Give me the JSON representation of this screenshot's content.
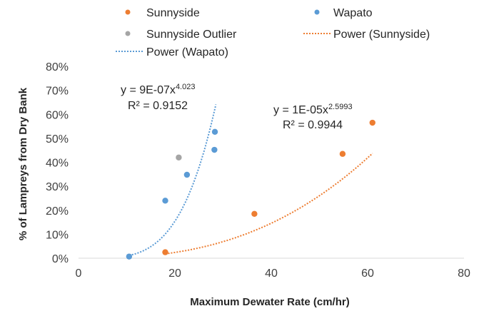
{
  "chart_data": {
    "type": "scatter",
    "xlabel": "Maximum Dewater Rate (cm/hr)",
    "ylabel": "% of Lampreys from Dry Bank",
    "xlim": [
      0,
      80
    ],
    "ylim": [
      0,
      0.8
    ],
    "x_ticks": [
      0,
      20,
      40,
      60,
      80
    ],
    "y_ticks": [
      0,
      0.1,
      0.2,
      0.3,
      0.4,
      0.5,
      0.6,
      0.7,
      0.8
    ],
    "x_tick_labels": [
      "0",
      "20",
      "40",
      "60",
      "80"
    ],
    "y_tick_labels": [
      "0%",
      "10%",
      "20%",
      "30%",
      "40%",
      "50%",
      "60%",
      "70%",
      "80%"
    ],
    "grid": {
      "horizontal": false,
      "vertical": false
    },
    "legend_position": "top",
    "series": [
      {
        "name": "Sunnyside",
        "kind": "points",
        "color": "#ED7D31",
        "x": [
          18.0,
          36.5,
          54.8,
          61.0
        ],
        "y": [
          0.025,
          0.185,
          0.435,
          0.565
        ]
      },
      {
        "name": "Wapato",
        "kind": "points",
        "color": "#5B9BD5",
        "x": [
          10.5,
          18.0,
          22.5,
          28.2,
          28.3
        ],
        "y": [
          0.007,
          0.24,
          0.348,
          0.452,
          0.527
        ]
      },
      {
        "name": "Sunnyside Outlier",
        "kind": "points",
        "color": "#A5A5A5",
        "x": [
          20.8
        ],
        "y": [
          0.42
        ]
      },
      {
        "name": "Power (Sunnyside)",
        "kind": "trendline",
        "color": "#ED7D31",
        "coefficient": 1e-05,
        "exponent": 2.5993,
        "x_range": [
          18.0,
          61.0
        ]
      },
      {
        "name": "Power (Wapato)",
        "kind": "trendline",
        "color": "#5B9BD5",
        "coefficient": 9e-07,
        "exponent": 4.023,
        "x_range": [
          10.5,
          28.5
        ]
      }
    ],
    "annotations": {
      "wapato_equation": {
        "prefix": "y = 9E-07x",
        "exponent": "4.023",
        "r2": "R² = 0.9152"
      },
      "sunnyside_equation": {
        "prefix": "y = 1E-05x",
        "exponent": "2.5993",
        "r2": "R² = 0.9944"
      }
    }
  }
}
